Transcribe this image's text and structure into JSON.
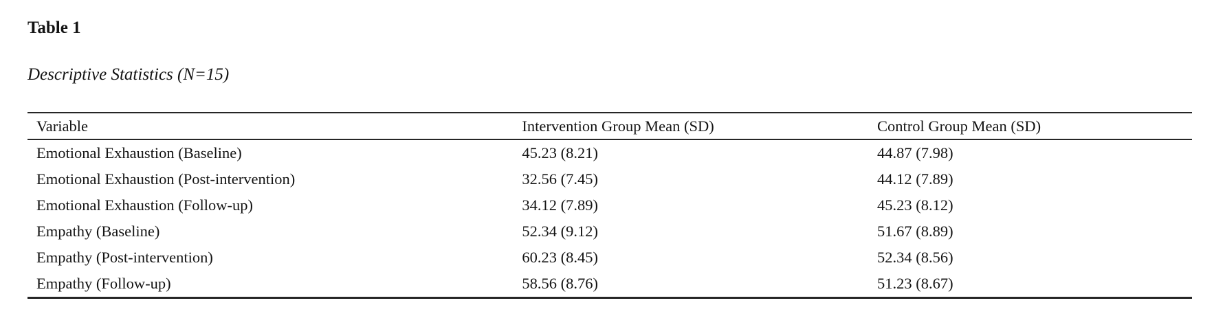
{
  "page": {
    "background": "#ffffff",
    "text_color": "#141414",
    "rule_color": "#262626"
  },
  "table_label": "Table 1",
  "table_caption": "Descriptive Statistics (N=15)",
  "table": {
    "columns": [
      "Variable",
      "Intervention Group Mean (SD)",
      "Control Group Mean (SD)"
    ],
    "rows": [
      [
        "Emotional Exhaustion (Baseline)",
        "45.23 (8.21)",
        "44.87 (7.98)"
      ],
      [
        "Emotional Exhaustion (Post-intervention)",
        "32.56 (7.45)",
        "44.12 (7.89)"
      ],
      [
        "Emotional Exhaustion (Follow-up)",
        "34.12 (7.89)",
        "45.23 (8.12)"
      ],
      [
        "Empathy (Baseline)",
        "52.34 (9.12)",
        "51.67 (8.89)"
      ],
      [
        "Empathy (Post-intervention)",
        "60.23 (8.45)",
        "52.34 (8.56)"
      ],
      [
        "Empathy (Follow-up)",
        "58.56 (8.76)",
        "51.23 (8.67)"
      ]
    ]
  }
}
